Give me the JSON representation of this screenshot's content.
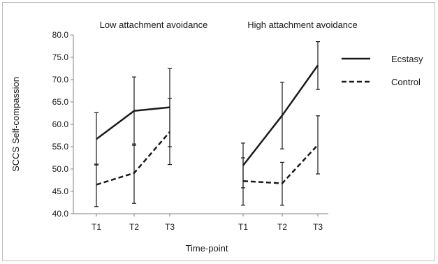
{
  "chart_data": {
    "type": "line",
    "ylabel": "SCCS Self-compassion",
    "xlabel": "Time-point",
    "ylim": [
      40,
      80
    ],
    "yticks": [
      "40.0",
      "45.0",
      "50.0",
      "55.0",
      "60.0",
      "65.0",
      "70.0",
      "75.0",
      "80.0"
    ],
    "categories": [
      "T1",
      "T2",
      "T3"
    ],
    "panels": [
      {
        "title": "Low attachment avoidance",
        "series": [
          {
            "name": "Ecstasy",
            "values": [
              56.7,
              63.0,
              63.8
            ],
            "err_low": [
              50.9,
              55.3,
              55.0
            ],
            "err_high": [
              62.6,
              70.6,
              72.5
            ]
          },
          {
            "name": "Control",
            "values": [
              46.5,
              49.1,
              58.3
            ],
            "err_low": [
              41.6,
              42.3,
              51.0
            ],
            "err_high": [
              51.1,
              55.6,
              65.8
            ]
          }
        ]
      },
      {
        "title": "High attachment avoidance",
        "series": [
          {
            "name": "Ecstasy",
            "values": [
              50.8,
              62.0,
              73.2
            ],
            "err_low": [
              45.8,
              54.5,
              67.8
            ],
            "err_high": [
              55.8,
              69.4,
              78.5
            ]
          },
          {
            "name": "Control",
            "values": [
              47.3,
              46.8,
              55.4
            ],
            "err_low": [
              41.9,
              41.9,
              48.9
            ],
            "err_high": [
              52.5,
              51.5,
              61.9
            ]
          }
        ]
      }
    ],
    "legend": [
      {
        "name": "Ecstasy",
        "style": "solid"
      },
      {
        "name": "Control",
        "style": "dashed"
      }
    ],
    "legend_position": "right",
    "grid": false,
    "colors": {
      "line": "#1a1a1a",
      "axis": "#808080"
    }
  }
}
